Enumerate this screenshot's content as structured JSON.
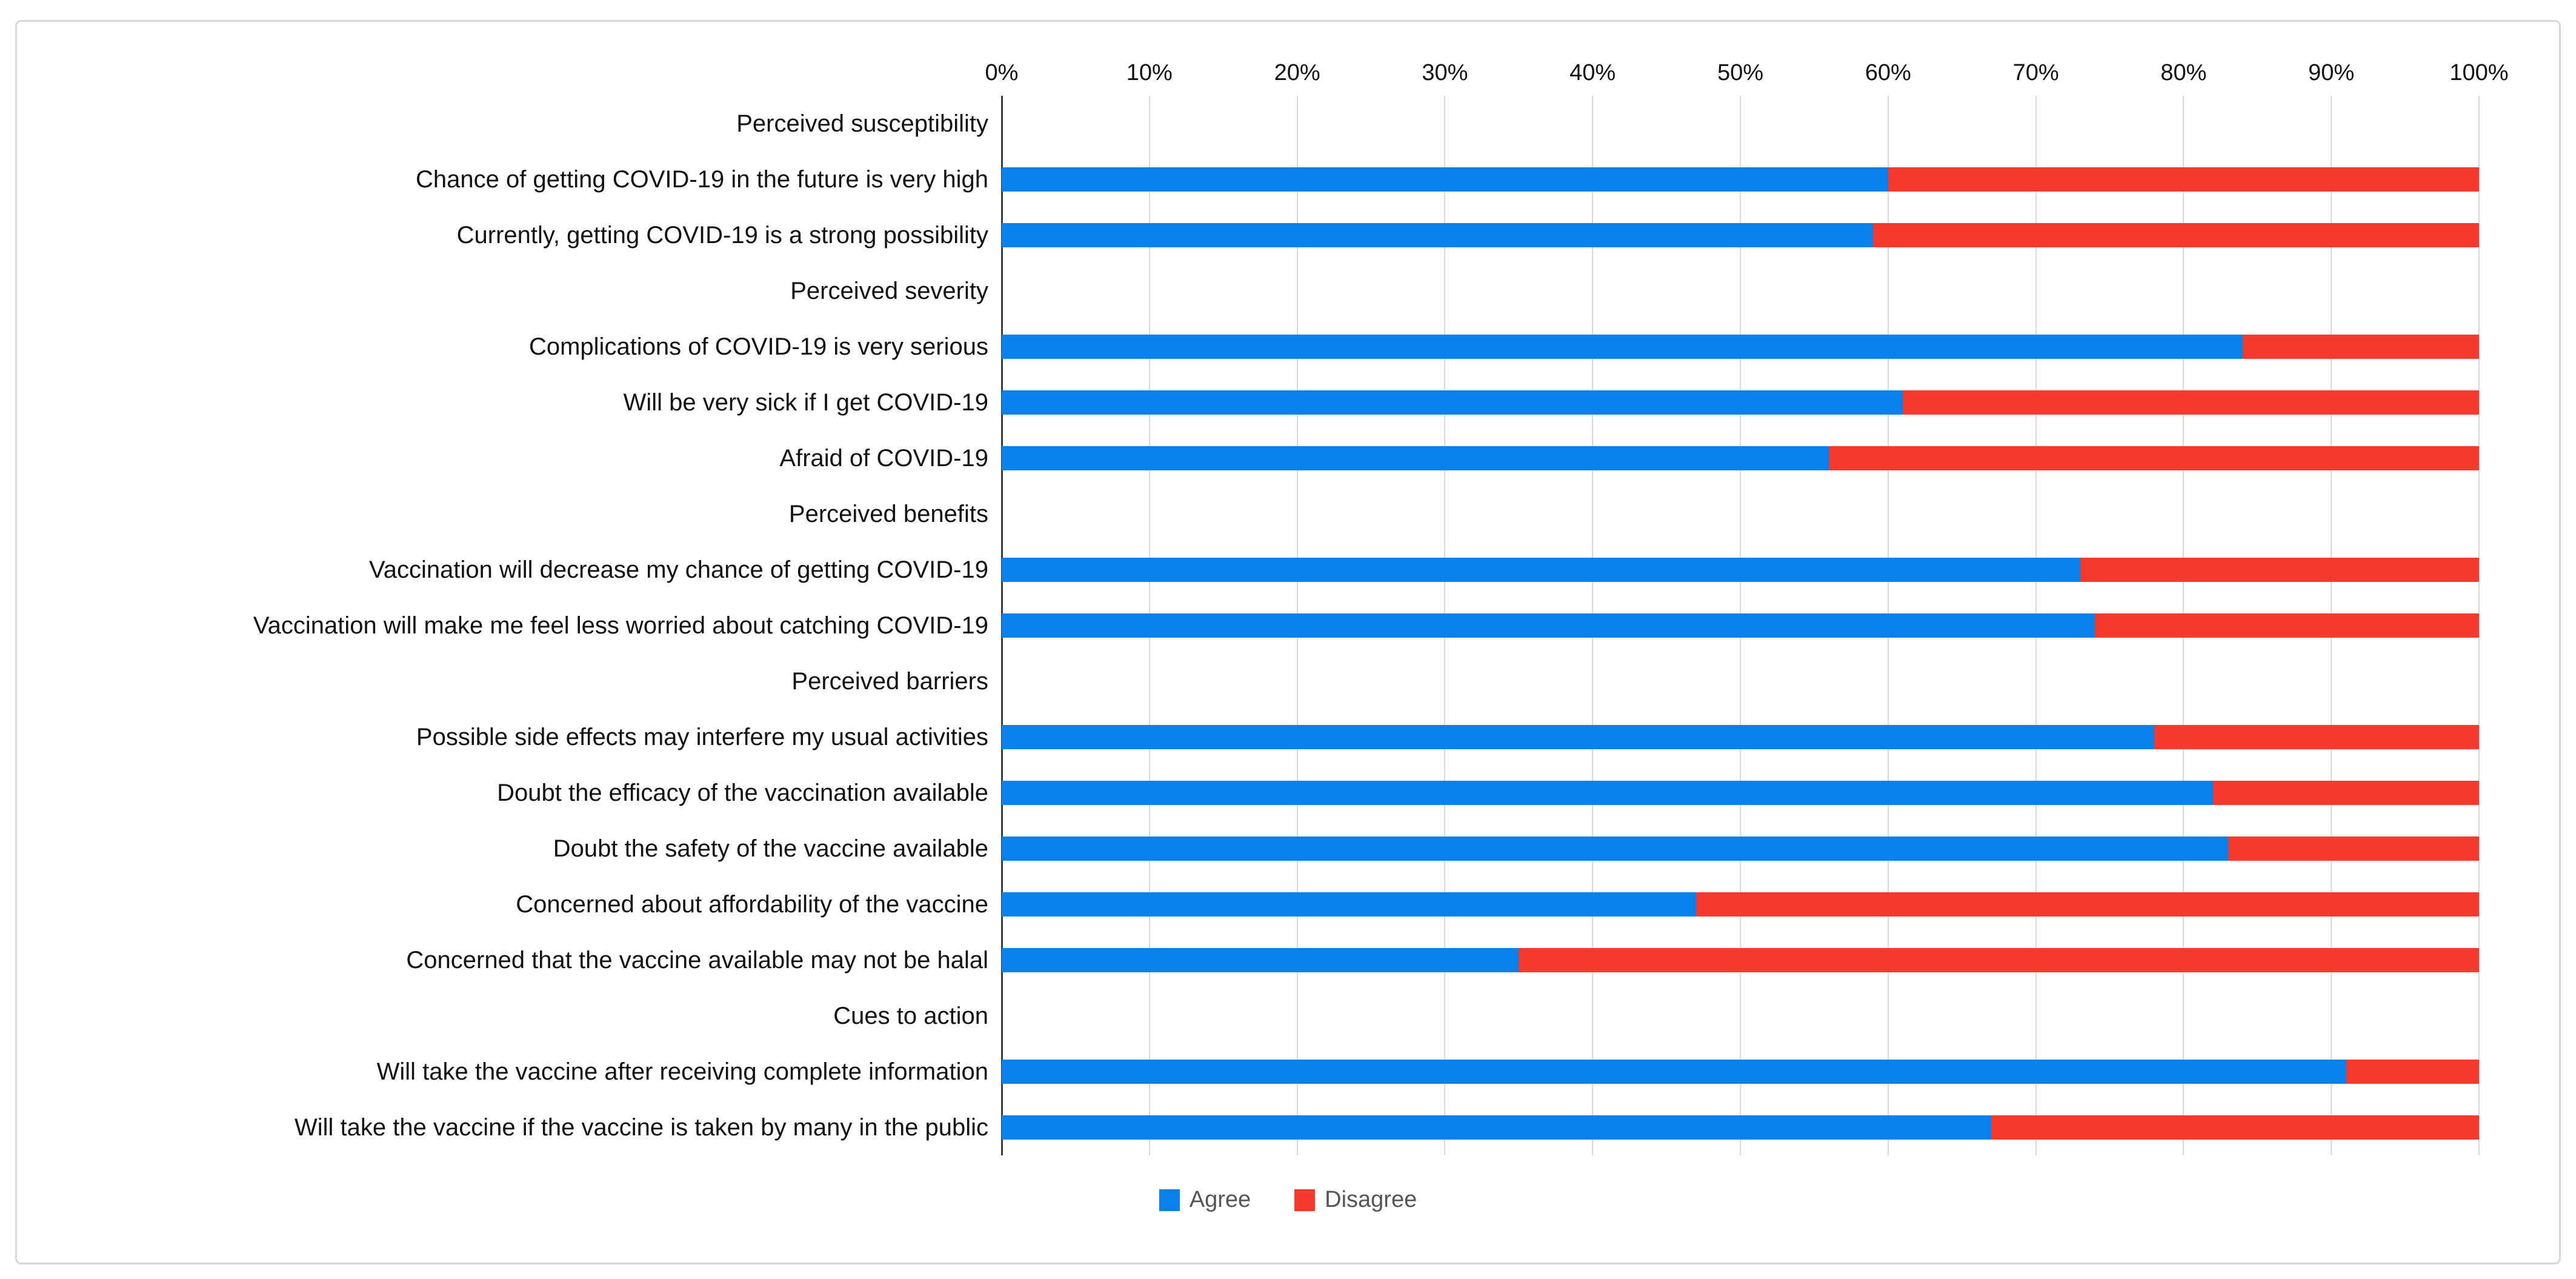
{
  "page": {
    "background": "#ffffff"
  },
  "legend": {
    "agree": "Agree",
    "disagree": "Disagree"
  },
  "colors": {
    "agree": "#0a80ea",
    "disagree": "#f5392f",
    "gridline": "#d9d9d9",
    "axis_line": "#3a3a3a",
    "card_border": "#d5d7d9",
    "label_text": "#111111",
    "legend_text": "#555555"
  },
  "chart_data": {
    "type": "bar",
    "orientation": "horizontal",
    "stacked": true,
    "unit": "%",
    "xlim": [
      0,
      100
    ],
    "grid": true,
    "legend_position": "bottom",
    "series_names": [
      "Agree",
      "Disagree"
    ],
    "x_ticks": [
      0,
      10,
      20,
      30,
      40,
      50,
      60,
      70,
      80,
      90,
      100
    ],
    "x_tick_labels": [
      "0%",
      "10%",
      "20%",
      "30%",
      "40%",
      "50%",
      "60%",
      "70%",
      "80%",
      "90%",
      "100%"
    ],
    "rows": [
      {
        "type": "header",
        "label": "Perceived susceptibility",
        "agree": null,
        "disagree": null
      },
      {
        "type": "bar",
        "label": "Chance of getting COVID-19 in the future is very high",
        "agree": 60,
        "disagree": 40
      },
      {
        "type": "bar",
        "label": "Currently, getting COVID-19 is a strong possibility",
        "agree": 59,
        "disagree": 41
      },
      {
        "type": "header",
        "label": "Perceived severity",
        "agree": null,
        "disagree": null
      },
      {
        "type": "bar",
        "label": "Complications of COVID-19 is very serious",
        "agree": 84,
        "disagree": 16
      },
      {
        "type": "bar",
        "label": "Will be very sick if I get COVID-19",
        "agree": 61,
        "disagree": 39
      },
      {
        "type": "bar",
        "label": "Afraid of COVID-19",
        "agree": 56,
        "disagree": 44
      },
      {
        "type": "header",
        "label": "Perceived benefits",
        "agree": null,
        "disagree": null
      },
      {
        "type": "bar",
        "label": "Vaccination will decrease my chance of getting COVID-19",
        "agree": 73,
        "disagree": 27
      },
      {
        "type": "bar",
        "label": "Vaccination will make me feel less worried about catching COVID-19",
        "agree": 74,
        "disagree": 26
      },
      {
        "type": "header",
        "label": "Perceived barriers",
        "agree": null,
        "disagree": null
      },
      {
        "type": "bar",
        "label": "Possible side effects may interfere my usual activities",
        "agree": 78,
        "disagree": 22
      },
      {
        "type": "bar",
        "label": "Doubt the efficacy of the vaccination available",
        "agree": 82,
        "disagree": 18
      },
      {
        "type": "bar",
        "label": "Doubt the safety of the vaccine available",
        "agree": 83,
        "disagree": 17
      },
      {
        "type": "bar",
        "label": "Concerned about affordability of the vaccine",
        "agree": 47,
        "disagree": 53
      },
      {
        "type": "bar",
        "label": "Concerned that the vaccine available may not be halal",
        "agree": 35,
        "disagree": 65
      },
      {
        "type": "header",
        "label": "Cues to action",
        "agree": null,
        "disagree": null
      },
      {
        "type": "bar",
        "label": "Will take the vaccine after receiving complete information",
        "agree": 91,
        "disagree": 9
      },
      {
        "type": "bar",
        "label": "Will take the vaccine if the vaccine is taken by many in the public",
        "agree": 67,
        "disagree": 33
      }
    ]
  }
}
